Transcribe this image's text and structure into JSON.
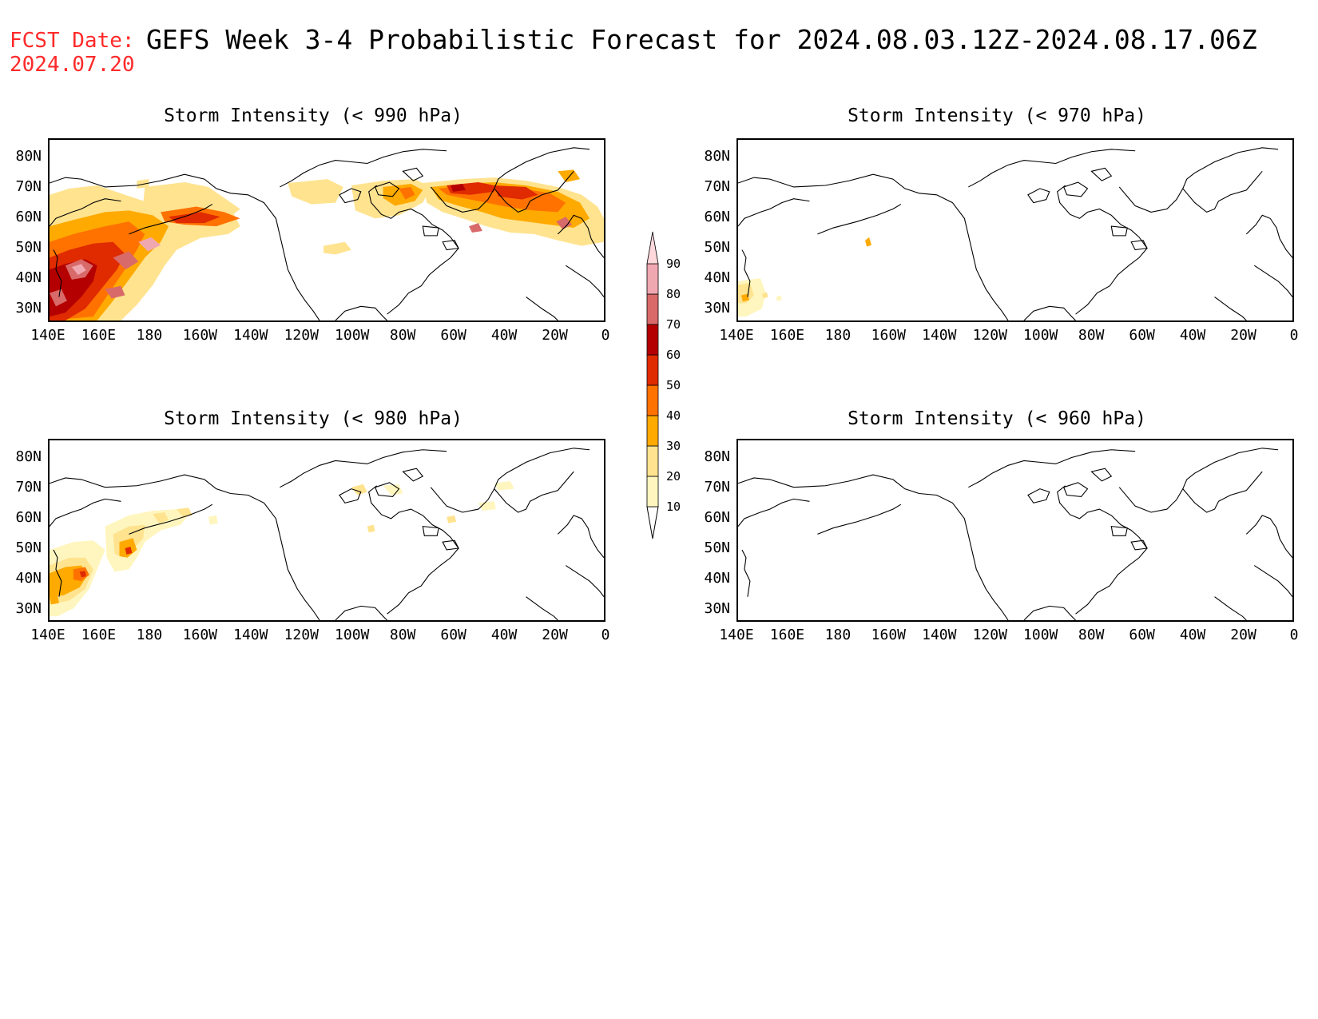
{
  "header": {
    "fcst_label": "FCST Date:",
    "fcst_date": "2024.07.20",
    "title": "GEFS Week 3-4 Probabilistic Forecast for 2024.08.03.12Z-2024.08.17.06Z"
  },
  "panels": [
    {
      "id": "p990",
      "title": "Storm Intensity (< 990 hPa)"
    },
    {
      "id": "p970",
      "title": "Storm Intensity (< 970 hPa)"
    },
    {
      "id": "p980",
      "title": "Storm Intensity (< 980 hPa)"
    },
    {
      "id": "p960",
      "title": "Storm Intensity (< 960 hPa)"
    }
  ],
  "axes": {
    "lat_ticks": [
      "80N",
      "70N",
      "60N",
      "50N",
      "40N",
      "30N"
    ],
    "lon_ticks": [
      "140E",
      "160E",
      "180",
      "160W",
      "140W",
      "120W",
      "100W",
      "80W",
      "60W",
      "40W",
      "20W",
      "0"
    ]
  },
  "colorbar": {
    "levels": [
      "10",
      "20",
      "30",
      "40",
      "50",
      "60",
      "70",
      "80",
      "90"
    ],
    "colors": [
      "#fff6bf",
      "#ffe38f",
      "#ffaa00",
      "#ff7200",
      "#e02a00",
      "#b40000",
      "#d86a6a",
      "#f0a8b0",
      "#ffd8dc"
    ]
  }
}
